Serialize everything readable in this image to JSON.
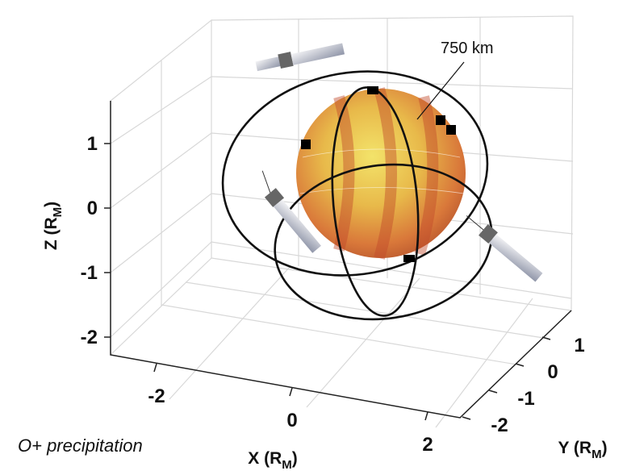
{
  "z_axis": {
    "label": "Z (R",
    "label_sub": "M",
    "label_end": ")",
    "ticks": [
      1,
      0,
      -1,
      -2
    ]
  },
  "x_axis": {
    "label": "X (R",
    "label_sub": "M",
    "label_end": ")",
    "ticks": [
      -2,
      0,
      2
    ]
  },
  "y_axis": {
    "label": "Y (R",
    "label_sub": "M",
    "label_end": ")",
    "ticks": [
      1,
      0,
      -1,
      -2
    ]
  },
  "annotation": "750 km",
  "caption": "O+ precipitation"
}
